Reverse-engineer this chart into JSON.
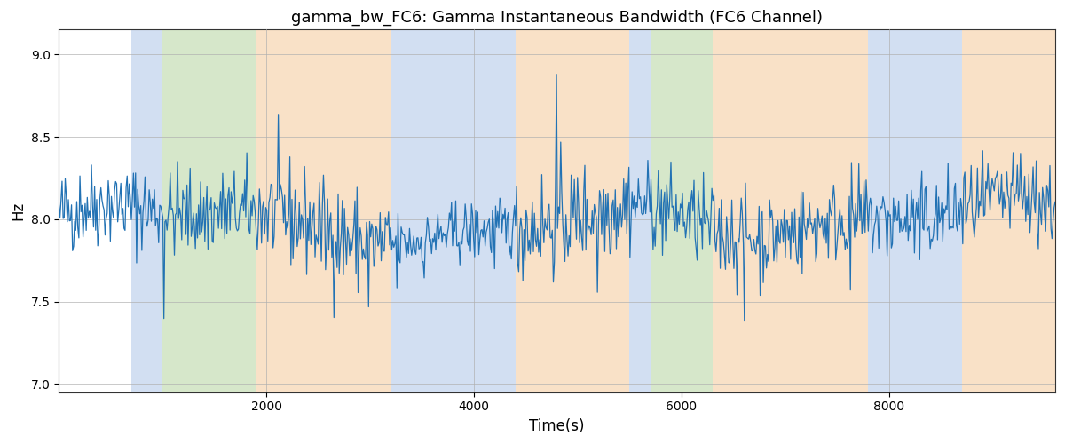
{
  "title": "gamma_bw_FC6: Gamma Instantaneous Bandwidth (FC6 Channel)",
  "xlabel": "Time(s)",
  "ylabel": "Hz",
  "ylim": [
    6.95,
    9.15
  ],
  "xlim": [
    0,
    9600
  ],
  "yticks": [
    7.0,
    7.5,
    8.0,
    8.5,
    9.0
  ],
  "xticks": [
    2000,
    4000,
    6000,
    8000
  ],
  "line_color": "#2272b4",
  "line_width": 0.9,
  "bg_color": "#ffffff",
  "grid_color": "#b0b0b0",
  "seed": 42,
  "n_points": 950,
  "mean": 8.0,
  "std": 0.13,
  "bands": [
    {
      "start": 700,
      "end": 1000,
      "color": "#aec6e8",
      "alpha": 0.55
    },
    {
      "start": 1000,
      "end": 1900,
      "color": "#b5d5a0",
      "alpha": 0.55
    },
    {
      "start": 1900,
      "end": 3200,
      "color": "#f5c99a",
      "alpha": 0.55
    },
    {
      "start": 3200,
      "end": 4400,
      "color": "#aec6e8",
      "alpha": 0.55
    },
    {
      "start": 4400,
      "end": 5500,
      "color": "#f5c99a",
      "alpha": 0.55
    },
    {
      "start": 5500,
      "end": 5700,
      "color": "#aec6e8",
      "alpha": 0.55
    },
    {
      "start": 5700,
      "end": 6300,
      "color": "#b5d5a0",
      "alpha": 0.55
    },
    {
      "start": 6300,
      "end": 7800,
      "color": "#f5c99a",
      "alpha": 0.55
    },
    {
      "start": 7800,
      "end": 8700,
      "color": "#aec6e8",
      "alpha": 0.55
    },
    {
      "start": 8700,
      "end": 9600,
      "color": "#f5c99a",
      "alpha": 0.55
    }
  ]
}
